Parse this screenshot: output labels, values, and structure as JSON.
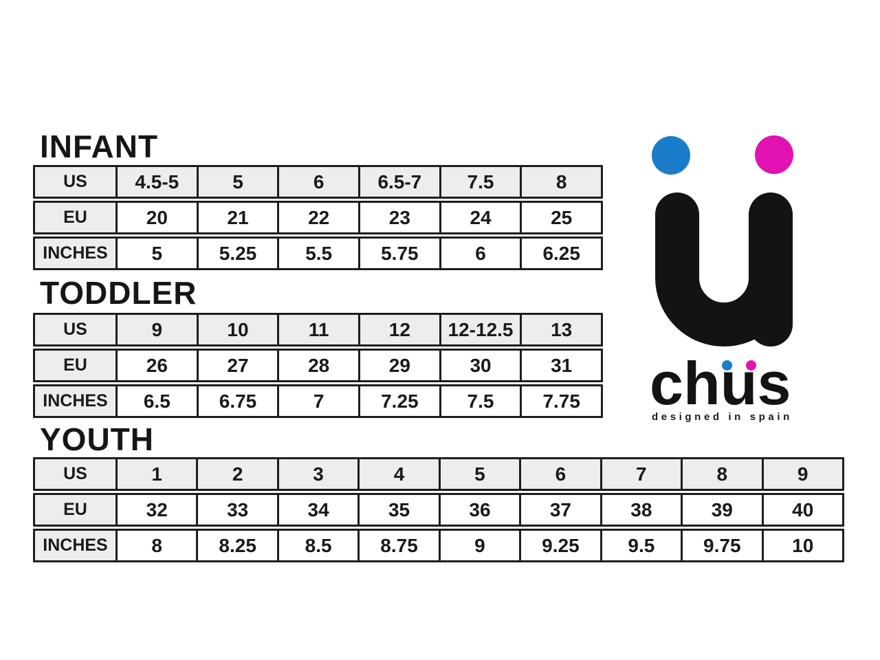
{
  "page": {
    "background": "#ffffff"
  },
  "colors": {
    "table_border": "#1d1d1d",
    "header_fill": "#ededed",
    "text": "#1a1a1a",
    "logo_blue": "#1b7dc9",
    "logo_magenta": "#e211b2",
    "logo_black": "#131313"
  },
  "logo": {
    "brand": "chüs",
    "brand_prefix": "ch",
    "brand_u": "u",
    "brand_suffix": "s",
    "tagline": "designed in spain"
  },
  "tables": [
    {
      "title": "INFANT",
      "rows": [
        {
          "label": "US",
          "values": [
            "4.5-5",
            "5",
            "6",
            "6.5-7",
            "7.5",
            "8"
          ]
        },
        {
          "label": "EU",
          "values": [
            "20",
            "21",
            "22",
            "23",
            "24",
            "25"
          ]
        },
        {
          "label": "INCHES",
          "values": [
            "5",
            "5.25",
            "5.5",
            "5.75",
            "6",
            "6.25"
          ]
        }
      ]
    },
    {
      "title": "TODDLER",
      "rows": [
        {
          "label": "US",
          "values": [
            "9",
            "10",
            "11",
            "12",
            "12-12.5",
            "13"
          ]
        },
        {
          "label": "EU",
          "values": [
            "26",
            "27",
            "28",
            "29",
            "30",
            "31"
          ]
        },
        {
          "label": "INCHES",
          "values": [
            "6.5",
            "6.75",
            "7",
            "7.25",
            "7.5",
            "7.75"
          ]
        }
      ]
    },
    {
      "title": "YOUTH",
      "rows": [
        {
          "label": "US",
          "values": [
            "1",
            "2",
            "3",
            "4",
            "5",
            "6",
            "7",
            "8",
            "9"
          ]
        },
        {
          "label": "EU",
          "values": [
            "32",
            "33",
            "34",
            "35",
            "36",
            "37",
            "38",
            "39",
            "40"
          ]
        },
        {
          "label": "INCHES",
          "values": [
            "8",
            "8.25",
            "8.5",
            "8.75",
            "9",
            "9.25",
            "9.5",
            "9.75",
            "10"
          ]
        }
      ]
    }
  ]
}
